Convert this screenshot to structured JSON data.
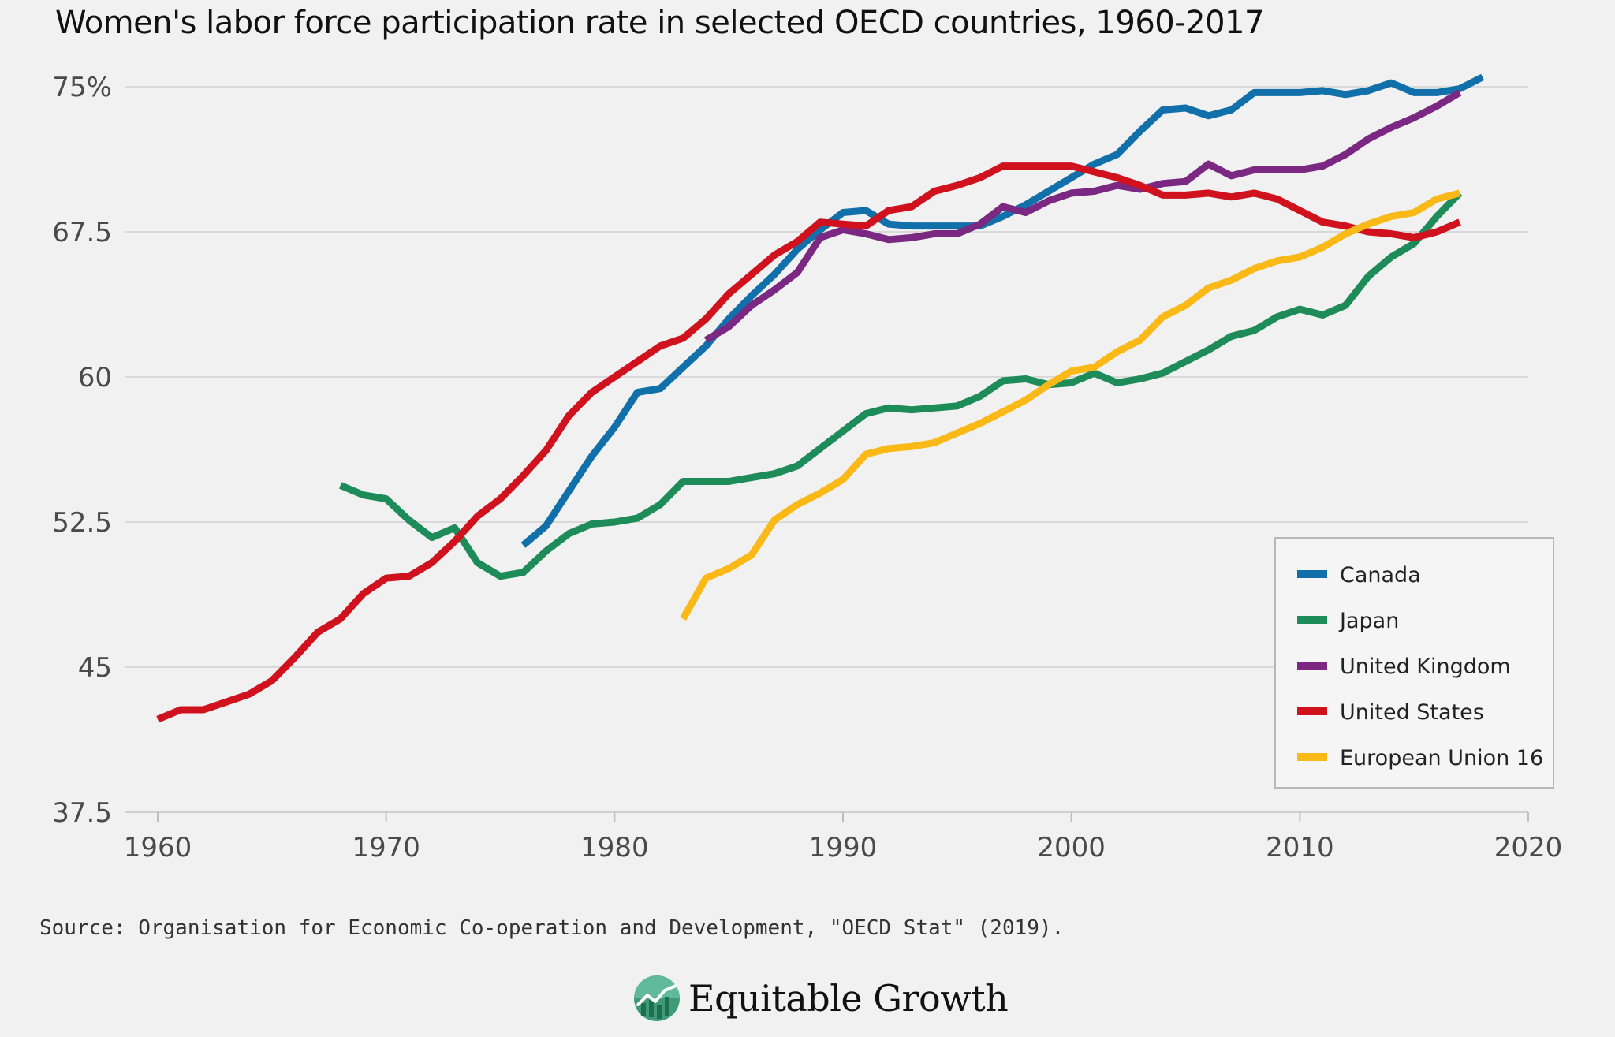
{
  "chart_data": {
    "type": "line",
    "title": "Women's labor force participation rate in selected OECD countries, 1960-2017",
    "xlabel": "",
    "ylabel": "",
    "xlim": [
      1958.5,
      2020
    ],
    "ylim": [
      37.5,
      75
    ],
    "x_ticks": [
      1960,
      1970,
      1980,
      1990,
      2000,
      2010,
      2020
    ],
    "x_tick_labels": [
      "1960",
      "1970",
      "1980",
      "1990",
      "2000",
      "2010",
      "2020"
    ],
    "y_ticks": [
      37.5,
      45,
      52.5,
      60,
      67.5,
      75
    ],
    "y_tick_labels": [
      "37.5",
      "45",
      "52.5",
      "60",
      "67.5",
      "75%"
    ],
    "grid": "horizontal",
    "legend_position": "bottom-right",
    "series": [
      {
        "name": "Canada",
        "color": "#1170aa",
        "start_year": 1976,
        "values": [
          51.3,
          52.3,
          54.1,
          55.9,
          57.4,
          59.2,
          59.4,
          60.5,
          61.6,
          63.0,
          64.2,
          65.3,
          66.6,
          67.6,
          68.5,
          68.6,
          67.9,
          67.8,
          67.8,
          67.8,
          67.8,
          68.3,
          68.9,
          69.6,
          70.3,
          71.0,
          71.5,
          72.7,
          73.8,
          73.9,
          73.5,
          73.8,
          74.7,
          74.7,
          74.7,
          74.8,
          74.6,
          74.8,
          75.2,
          74.7,
          74.7,
          74.9,
          75.5
        ]
      },
      {
        "name": "Japan",
        "color": "#1e8c58",
        "start_year": 1968,
        "values": [
          54.4,
          53.9,
          53.7,
          52.6,
          51.7,
          52.2,
          50.4,
          49.7,
          49.9,
          51.0,
          51.9,
          52.4,
          52.5,
          52.7,
          53.4,
          54.6,
          54.6,
          54.6,
          54.8,
          55.0,
          55.4,
          56.3,
          57.2,
          58.1,
          58.4,
          58.3,
          58.4,
          58.5,
          59.0,
          59.8,
          59.9,
          59.6,
          59.7,
          60.2,
          59.7,
          59.9,
          60.2,
          60.8,
          61.4,
          62.1,
          62.4,
          63.1,
          63.5,
          63.2,
          63.7,
          65.2,
          66.2,
          66.9,
          68.3,
          69.5
        ]
      },
      {
        "name": "United Kingdom",
        "color": "#7b2883",
        "start_year": 1984,
        "values": [
          61.9,
          62.6,
          63.7,
          64.5,
          65.4,
          67.2,
          67.6,
          67.4,
          67.1,
          67.2,
          67.4,
          67.4,
          67.9,
          68.8,
          68.5,
          69.1,
          69.5,
          69.6,
          69.9,
          69.7,
          70.0,
          70.1,
          71.0,
          70.4,
          70.7,
          70.7,
          70.7,
          70.9,
          71.5,
          72.3,
          72.9,
          73.4,
          74.0,
          74.7
        ]
      },
      {
        "name": "United States",
        "color": "#d0121e",
        "start_year": 1960,
        "values": [
          42.3,
          42.8,
          42.8,
          43.2,
          43.6,
          44.3,
          45.5,
          46.8,
          47.5,
          48.8,
          49.6,
          49.7,
          50.4,
          51.5,
          52.8,
          53.7,
          54.9,
          56.2,
          58.0,
          59.2,
          60.0,
          60.8,
          61.6,
          62.0,
          63.0,
          64.3,
          65.3,
          66.3,
          67.0,
          68.0,
          67.9,
          67.8,
          68.6,
          68.8,
          69.6,
          69.9,
          70.3,
          70.9,
          70.9,
          70.9,
          70.9,
          70.6,
          70.3,
          69.9,
          69.4,
          69.4,
          69.5,
          69.3,
          69.5,
          69.2,
          68.6,
          68.0,
          67.8,
          67.5,
          67.4,
          67.2,
          67.5,
          68.0
        ]
      },
      {
        "name": "European Union 16",
        "color": "#fbb918",
        "start_year": 1983,
        "values": [
          47.5,
          49.6,
          50.1,
          50.8,
          52.6,
          53.4,
          54.0,
          54.7,
          56.0,
          56.3,
          56.4,
          56.6,
          57.1,
          57.6,
          58.2,
          58.8,
          59.6,
          60.3,
          60.5,
          61.3,
          61.9,
          63.1,
          63.7,
          64.6,
          65.0,
          65.6,
          66.0,
          66.2,
          66.7,
          67.4,
          67.9,
          68.3,
          68.5,
          69.2,
          69.5
        ]
      }
    ],
    "source": "Source: Organisation for Economic Co-operation and Development, \"OECD Stat\" (2019).",
    "brand": "Equitable Growth"
  }
}
